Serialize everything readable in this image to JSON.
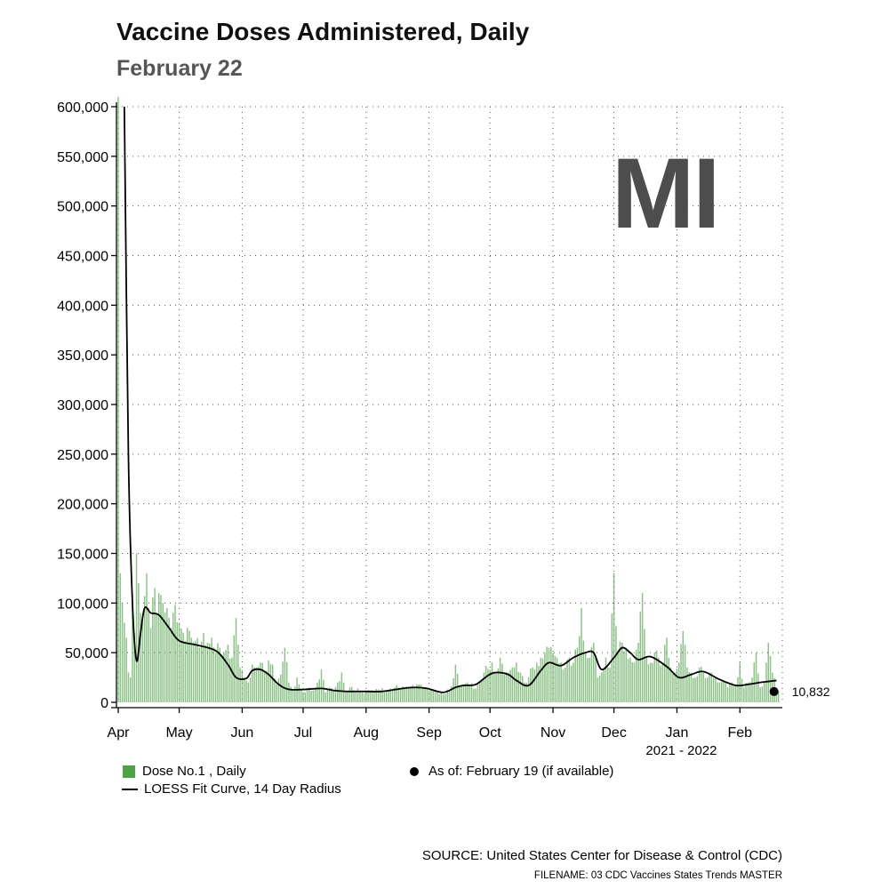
{
  "title": "Vaccine Doses Administered, Daily",
  "subtitle": "February 22",
  "state_label": "MI",
  "legend": {
    "bars": "Dose No.1 , Daily",
    "curve": "LOESS Fit Curve, 14 Day Radius",
    "point": "As of: February 19 (if available)"
  },
  "source": "SOURCE: United States Center for Disease & Control (CDC)",
  "filename": "FILENAME: 03 CDC Vaccines States Trends MASTER",
  "colors": {
    "bar": "#4fa146",
    "curve": "#000000",
    "state": "#4d4d4d"
  },
  "chart_data": {
    "type": "bar",
    "title": "Vaccine Doses Administered, Daily",
    "ylim": [
      0,
      600000
    ],
    "y_ticks": [
      0,
      50000,
      100000,
      150000,
      200000,
      250000,
      300000,
      350000,
      400000,
      450000,
      500000,
      550000,
      600000
    ],
    "y_tick_labels": [
      "0",
      "50,000",
      "100,000",
      "150,000",
      "200,000",
      "250,000",
      "300,000",
      "350,000",
      "400,000",
      "450,000",
      "500,000",
      "550,000",
      "600,000"
    ],
    "x_months": [
      "Apr",
      "May",
      "Jun",
      "Jul",
      "Aug",
      "Sep",
      "Oct",
      "Nov",
      "Dec",
      "Jan",
      "Feb"
    ],
    "x_month_day_index": [
      0,
      30,
      61,
      91,
      122,
      153,
      183,
      214,
      244,
      275,
      306
    ],
    "x_total_days": 326,
    "year_label": "2021 - 2022",
    "last_value": 10832,
    "last_value_label": "10,832",
    "series": [
      {
        "name": "Dose No.1 , Daily",
        "type": "bar",
        "anchors": [
          [
            0,
            610000
          ],
          [
            1,
            130000
          ],
          [
            2,
            100000
          ],
          [
            4,
            65000
          ],
          [
            5,
            30000
          ],
          [
            6,
            25000
          ],
          [
            7,
            110000
          ],
          [
            8,
            70000
          ],
          [
            9,
            150000
          ],
          [
            10,
            120000
          ],
          [
            11,
            90000
          ],
          [
            12,
            80000
          ],
          [
            14,
            130000
          ],
          [
            15,
            95000
          ],
          [
            16,
            75000
          ],
          [
            18,
            115000
          ],
          [
            19,
            90000
          ],
          [
            20,
            110000
          ],
          [
            21,
            108000
          ],
          [
            22,
            100000
          ],
          [
            24,
            95000
          ],
          [
            25,
            85000
          ],
          [
            26,
            75000
          ],
          [
            27,
            90000
          ],
          [
            28,
            98000
          ],
          [
            30,
            80000
          ],
          [
            32,
            70000
          ],
          [
            34,
            75000
          ],
          [
            36,
            65000
          ],
          [
            38,
            62000
          ],
          [
            40,
            55000
          ],
          [
            42,
            70000
          ],
          [
            44,
            60000
          ],
          [
            46,
            65000
          ],
          [
            48,
            50000
          ],
          [
            50,
            55000
          ],
          [
            52,
            50000
          ],
          [
            54,
            58000
          ],
          [
            56,
            45000
          ],
          [
            58,
            85000
          ],
          [
            60,
            35000
          ],
          [
            62,
            25000
          ],
          [
            64,
            20000
          ],
          [
            66,
            38000
          ],
          [
            68,
            35000
          ],
          [
            70,
            40000
          ],
          [
            72,
            30000
          ],
          [
            74,
            42000
          ],
          [
            76,
            38000
          ],
          [
            78,
            18000
          ],
          [
            80,
            28000
          ],
          [
            82,
            55000
          ],
          [
            84,
            20000
          ],
          [
            86,
            12000
          ],
          [
            88,
            25000
          ],
          [
            90,
            12000
          ],
          [
            92,
            10000
          ],
          [
            94,
            15000
          ],
          [
            96,
            12000
          ],
          [
            98,
            20000
          ],
          [
            100,
            33000
          ],
          [
            102,
            10000
          ],
          [
            104,
            15000
          ],
          [
            106,
            12000
          ],
          [
            108,
            20000
          ],
          [
            110,
            30000
          ],
          [
            112,
            10000
          ],
          [
            114,
            15000
          ],
          [
            116,
            12000
          ],
          [
            118,
            14000
          ],
          [
            120,
            10000
          ],
          [
            124,
            12000
          ],
          [
            128,
            13000
          ],
          [
            132,
            12000
          ],
          [
            136,
            15000
          ],
          [
            140,
            16000
          ],
          [
            144,
            16000
          ],
          [
            148,
            18000
          ],
          [
            152,
            15000
          ],
          [
            156,
            12000
          ],
          [
            160,
            8000
          ],
          [
            164,
            16000
          ],
          [
            166,
            38000
          ],
          [
            168,
            16000
          ],
          [
            172,
            20000
          ],
          [
            176,
            14000
          ],
          [
            180,
            30000
          ],
          [
            184,
            40000
          ],
          [
            186,
            30000
          ],
          [
            188,
            45000
          ],
          [
            190,
            28000
          ],
          [
            192,
            30000
          ],
          [
            194,
            35000
          ],
          [
            196,
            40000
          ],
          [
            198,
            30000
          ],
          [
            200,
            20000
          ],
          [
            202,
            25000
          ],
          [
            204,
            35000
          ],
          [
            206,
            40000
          ],
          [
            208,
            45000
          ],
          [
            210,
            50000
          ],
          [
            212,
            55000
          ],
          [
            214,
            50000
          ],
          [
            216,
            45000
          ],
          [
            218,
            40000
          ],
          [
            220,
            35000
          ],
          [
            222,
            45000
          ],
          [
            224,
            40000
          ],
          [
            226,
            55000
          ],
          [
            228,
            95000
          ],
          [
            230,
            50000
          ],
          [
            232,
            45000
          ],
          [
            234,
            60000
          ],
          [
            236,
            25000
          ],
          [
            238,
            30000
          ],
          [
            240,
            45000
          ],
          [
            242,
            35000
          ],
          [
            244,
            130000
          ],
          [
            246,
            50000
          ],
          [
            248,
            60000
          ],
          [
            250,
            55000
          ],
          [
            252,
            45000
          ],
          [
            254,
            40000
          ],
          [
            256,
            60000
          ],
          [
            258,
            110000
          ],
          [
            260,
            45000
          ],
          [
            262,
            40000
          ],
          [
            264,
            50000
          ],
          [
            266,
            45000
          ],
          [
            268,
            40000
          ],
          [
            270,
            65000
          ],
          [
            272,
            35000
          ],
          [
            274,
            30000
          ],
          [
            276,
            40000
          ],
          [
            278,
            72000
          ],
          [
            280,
            35000
          ],
          [
            282,
            30000
          ],
          [
            284,
            25000
          ],
          [
            286,
            35000
          ],
          [
            288,
            30000
          ],
          [
            290,
            25000
          ],
          [
            292,
            30000
          ],
          [
            294,
            25000
          ],
          [
            296,
            20000
          ],
          [
            298,
            22000
          ],
          [
            300,
            15000
          ],
          [
            302,
            20000
          ],
          [
            304,
            18000
          ],
          [
            306,
            40000
          ],
          [
            308,
            15000
          ],
          [
            310,
            20000
          ],
          [
            312,
            25000
          ],
          [
            314,
            50000
          ],
          [
            316,
            15000
          ],
          [
            318,
            20000
          ],
          [
            320,
            60000
          ],
          [
            322,
            30000
          ],
          [
            324,
            15000
          ],
          [
            325,
            10832
          ]
        ]
      },
      {
        "name": "LOESS Fit Curve, 14 Day Radius",
        "type": "line",
        "anchors": [
          [
            3,
            600000
          ],
          [
            5,
            250000
          ],
          [
            7,
            100000
          ],
          [
            9,
            42000
          ],
          [
            11,
            70000
          ],
          [
            13,
            95000
          ],
          [
            16,
            90000
          ],
          [
            20,
            88000
          ],
          [
            25,
            75000
          ],
          [
            30,
            62000
          ],
          [
            38,
            58000
          ],
          [
            48,
            52000
          ],
          [
            54,
            38000
          ],
          [
            58,
            25000
          ],
          [
            63,
            24000
          ],
          [
            66,
            32000
          ],
          [
            70,
            33000
          ],
          [
            74,
            28000
          ],
          [
            79,
            18000
          ],
          [
            84,
            13000
          ],
          [
            92,
            13000
          ],
          [
            100,
            14000
          ],
          [
            106,
            12000
          ],
          [
            112,
            11000
          ],
          [
            120,
            11000
          ],
          [
            130,
            11000
          ],
          [
            140,
            14000
          ],
          [
            146,
            15000
          ],
          [
            152,
            14000
          ],
          [
            160,
            10000
          ],
          [
            166,
            15000
          ],
          [
            170,
            17000
          ],
          [
            176,
            18000
          ],
          [
            182,
            27000
          ],
          [
            186,
            30000
          ],
          [
            192,
            28000
          ],
          [
            196,
            22000
          ],
          [
            202,
            17000
          ],
          [
            208,
            32000
          ],
          [
            212,
            40000
          ],
          [
            218,
            37000
          ],
          [
            224,
            45000
          ],
          [
            230,
            50000
          ],
          [
            234,
            50000
          ],
          [
            238,
            33000
          ],
          [
            244,
            45000
          ],
          [
            248,
            55000
          ],
          [
            252,
            50000
          ],
          [
            256,
            43000
          ],
          [
            262,
            46000
          ],
          [
            270,
            36000
          ],
          [
            276,
            25000
          ],
          [
            282,
            28000
          ],
          [
            288,
            31000
          ],
          [
            296,
            23000
          ],
          [
            304,
            17000
          ],
          [
            310,
            18000
          ],
          [
            316,
            20000
          ],
          [
            320,
            21000
          ],
          [
            324,
            22000
          ]
        ]
      }
    ]
  }
}
